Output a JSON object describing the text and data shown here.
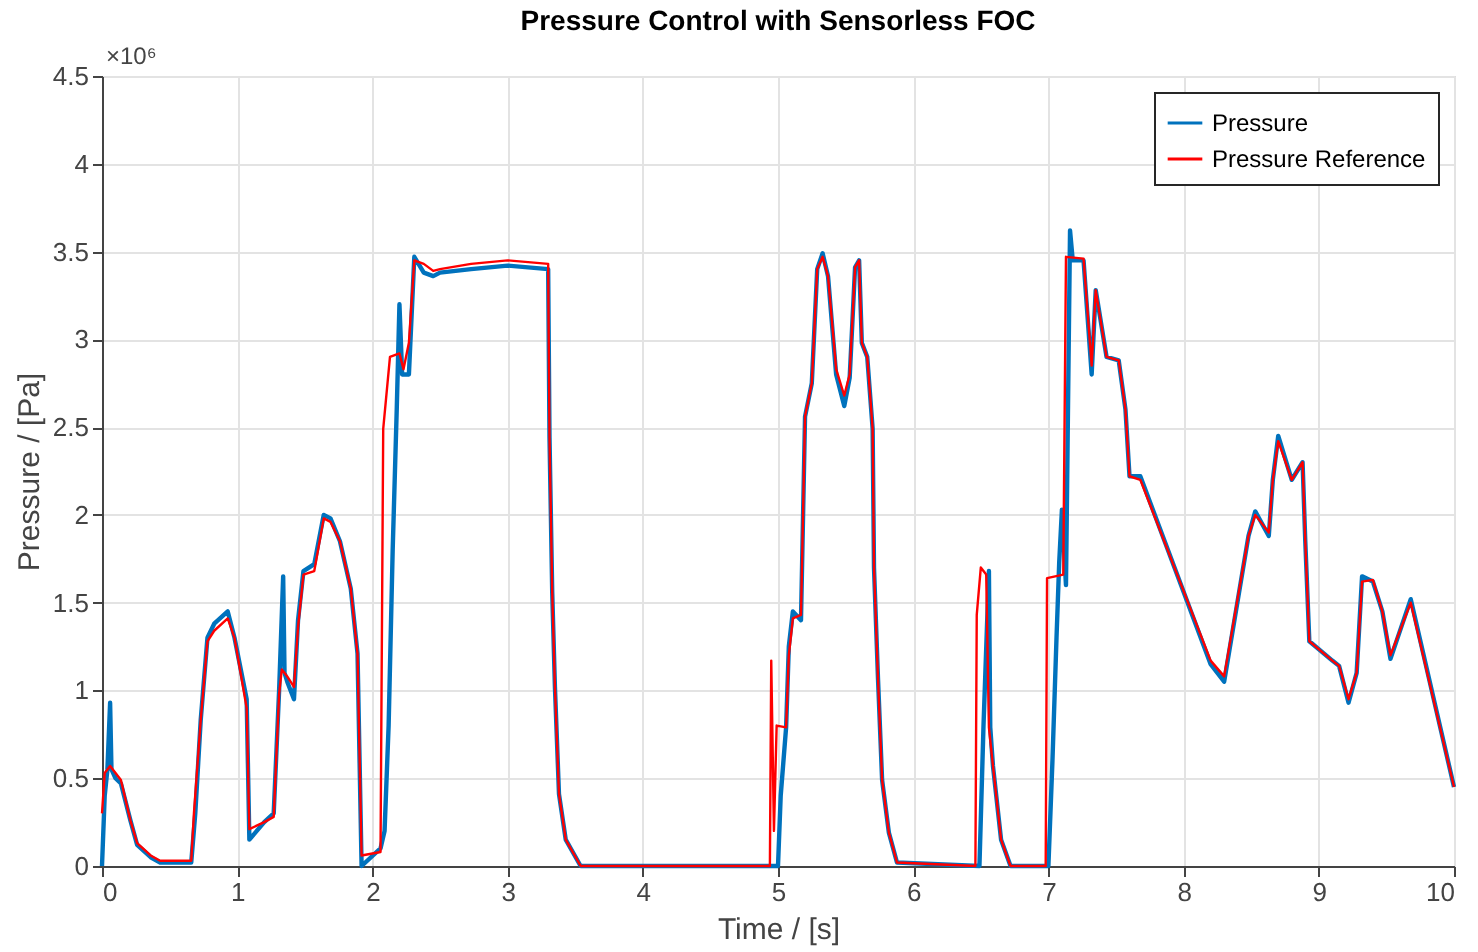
{
  "chart_data": {
    "type": "line",
    "title": "Pressure Control with Sensorless FOC",
    "xlabel": "Time / [s]",
    "ylabel": "Pressure / [Pa]",
    "xlim": [
      0,
      10
    ],
    "ylim": [
      0,
      4.5
    ],
    "xticks": [
      0,
      1,
      2,
      3,
      4,
      5,
      6,
      7,
      8,
      9,
      10
    ],
    "yticks": [
      0,
      0.5,
      1,
      1.5,
      2,
      2.5,
      3,
      3.5,
      4,
      4.5
    ],
    "grid": true,
    "legend": "top right",
    "annotations": [
      "×10⁶"
    ],
    "series": [
      {
        "name": "Pressure",
        "color": "#0072bd",
        "x": [
          0,
          0.02,
          0.04,
          0.06,
          0.07,
          0.1,
          0.14,
          0.21,
          0.26,
          0.36,
          0.43,
          0.66,
          0.69,
          0.73,
          0.78,
          0.83,
          0.93,
          0.98,
          1.07,
          1.09,
          1.2,
          1.27,
          1.31,
          1.34,
          1.35,
          1.37,
          1.42,
          1.45,
          1.49,
          1.57,
          1.64,
          1.69,
          1.76,
          1.84,
          1.89,
          1.92,
          2.06,
          2.09,
          2.12,
          2.15,
          2.18,
          2.2,
          2.22,
          2.27,
          2.31,
          2.38,
          2.45,
          2.5,
          2.73,
          3.0,
          3.3,
          3.31,
          3.33,
          3.35,
          3.38,
          3.43,
          3.54,
          5.0,
          5.02,
          5.06,
          5.08,
          5.11,
          5.17,
          5.2,
          5.25,
          5.29,
          5.33,
          5.37,
          5.43,
          5.49,
          5.53,
          5.57,
          5.6,
          5.62,
          5.66,
          5.7,
          5.71,
          5.74,
          5.77,
          5.82,
          5.88,
          6.49,
          6.52,
          6.56,
          6.57,
          6.59,
          6.65,
          6.72,
          7.0,
          7.03,
          7.06,
          7.08,
          7.1,
          7.13,
          7.16,
          7.18,
          7.26,
          7.32,
          7.35,
          7.43,
          7.52,
          7.57,
          7.6,
          7.68,
          8.2,
          8.3,
          8.48,
          8.53,
          8.63,
          8.66,
          8.7,
          8.8,
          8.88,
          8.9,
          8.93,
          9.1,
          9.15,
          9.22,
          9.28,
          9.32,
          9.4,
          9.47,
          9.53,
          9.68,
          10.0
        ],
        "values": [
          0,
          0.4,
          0.55,
          0.93,
          0.55,
          0.5,
          0.47,
          0.26,
          0.12,
          0.05,
          0.02,
          0.02,
          0.3,
          0.83,
          1.3,
          1.38,
          1.45,
          1.3,
          0.95,
          0.15,
          0.25,
          0.3,
          1.0,
          1.65,
          1.1,
          1.05,
          0.95,
          1.4,
          1.68,
          1.72,
          2.0,
          1.98,
          1.85,
          1.58,
          1.21,
          0.0,
          0.1,
          0.2,
          0.8,
          1.8,
          2.6,
          3.2,
          2.8,
          2.8,
          3.47,
          3.38,
          3.36,
          3.38,
          3.4,
          3.42,
          3.4,
          2.44,
          1.56,
          1.02,
          0.41,
          0.15,
          0,
          0,
          0.4,
          0.79,
          1.25,
          1.45,
          1.4,
          2.56,
          2.75,
          3.4,
          3.49,
          3.36,
          2.8,
          2.62,
          2.78,
          3.41,
          3.45,
          2.98,
          2.9,
          2.49,
          1.7,
          1.06,
          0.49,
          0.19,
          0.02,
          0,
          0.8,
          1.68,
          0.79,
          0.57,
          0.15,
          0,
          0,
          0.6,
          1.3,
          1.73,
          2.03,
          1.6,
          3.62,
          3.45,
          3.45,
          2.8,
          3.28,
          2.9,
          2.88,
          2.6,
          2.22,
          2.22,
          1.15,
          1.05,
          1.88,
          2.02,
          1.88,
          2.2,
          2.45,
          2.2,
          2.3,
          1.85,
          1.28,
          1.17,
          1.14,
          0.93,
          1.1,
          1.65,
          1.62,
          1.45,
          1.18,
          1.52,
          0.45
        ]
      },
      {
        "name": "Pressure Reference",
        "color": "#ff0000",
        "x": [
          0,
          0.02,
          0.06,
          0.14,
          0.21,
          0.26,
          0.36,
          0.43,
          0.66,
          0.68,
          0.73,
          0.78,
          0.83,
          0.93,
          0.98,
          1.07,
          1.09,
          1.2,
          1.27,
          1.31,
          1.33,
          1.37,
          1.42,
          1.45,
          1.49,
          1.57,
          1.64,
          1.69,
          1.76,
          1.84,
          1.89,
          1.92,
          2.06,
          2.08,
          2.13,
          2.2,
          2.23,
          2.27,
          2.31,
          2.38,
          2.45,
          2.5,
          2.73,
          3.0,
          3.3,
          3.31,
          3.33,
          3.35,
          3.38,
          3.43,
          3.54,
          4.94,
          4.95,
          4.97,
          4.99,
          5.06,
          5.08,
          5.11,
          5.17,
          5.2,
          5.25,
          5.29,
          5.33,
          5.37,
          5.43,
          5.49,
          5.53,
          5.57,
          5.6,
          5.62,
          5.66,
          5.7,
          5.71,
          5.74,
          5.77,
          5.82,
          5.88,
          6.46,
          6.47,
          6.5,
          6.54,
          6.56,
          6.59,
          6.65,
          6.72,
          6.98,
          6.99,
          7.11,
          7.13,
          7.26,
          7.32,
          7.35,
          7.43,
          7.52,
          7.57,
          7.6,
          7.68,
          8.2,
          8.3,
          8.48,
          8.53,
          8.63,
          8.66,
          8.7,
          8.8,
          8.88,
          8.9,
          8.93,
          9.1,
          9.15,
          9.22,
          9.28,
          9.32,
          9.4,
          9.47,
          9.53,
          9.68,
          10.0
        ],
        "values": [
          0.3,
          0.53,
          0.57,
          0.49,
          0.26,
          0.13,
          0.06,
          0.03,
          0.03,
          0.3,
          0.83,
          1.28,
          1.34,
          1.41,
          1.3,
          0.9,
          0.21,
          0.25,
          0.28,
          0.98,
          1.12,
          1.08,
          1.02,
          1.36,
          1.66,
          1.68,
          1.98,
          1.96,
          1.85,
          1.58,
          1.21,
          0.06,
          0.08,
          2.49,
          2.9,
          2.92,
          2.83,
          2.98,
          3.45,
          3.43,
          3.39,
          3.4,
          3.43,
          3.45,
          3.43,
          2.44,
          1.56,
          1.02,
          0.41,
          0.15,
          0,
          0,
          1.17,
          0.2,
          0.8,
          0.79,
          1.2,
          1.41,
          1.43,
          2.56,
          2.75,
          3.4,
          3.47,
          3.36,
          2.83,
          2.68,
          2.8,
          3.41,
          3.45,
          2.98,
          2.9,
          2.49,
          1.7,
          1.06,
          0.49,
          0.19,
          0.02,
          0,
          1.43,
          1.7,
          1.66,
          0.79,
          0.57,
          0.15,
          0,
          0,
          1.64,
          1.66,
          3.47,
          3.46,
          2.85,
          3.28,
          2.9,
          2.88,
          2.6,
          2.22,
          2.2,
          1.17,
          1.08,
          1.88,
          2.0,
          1.9,
          2.2,
          2.42,
          2.2,
          2.3,
          1.85,
          1.28,
          1.17,
          1.14,
          0.95,
          1.1,
          1.62,
          1.63,
          1.45,
          1.2,
          1.5,
          0.45
        ]
      }
    ]
  }
}
